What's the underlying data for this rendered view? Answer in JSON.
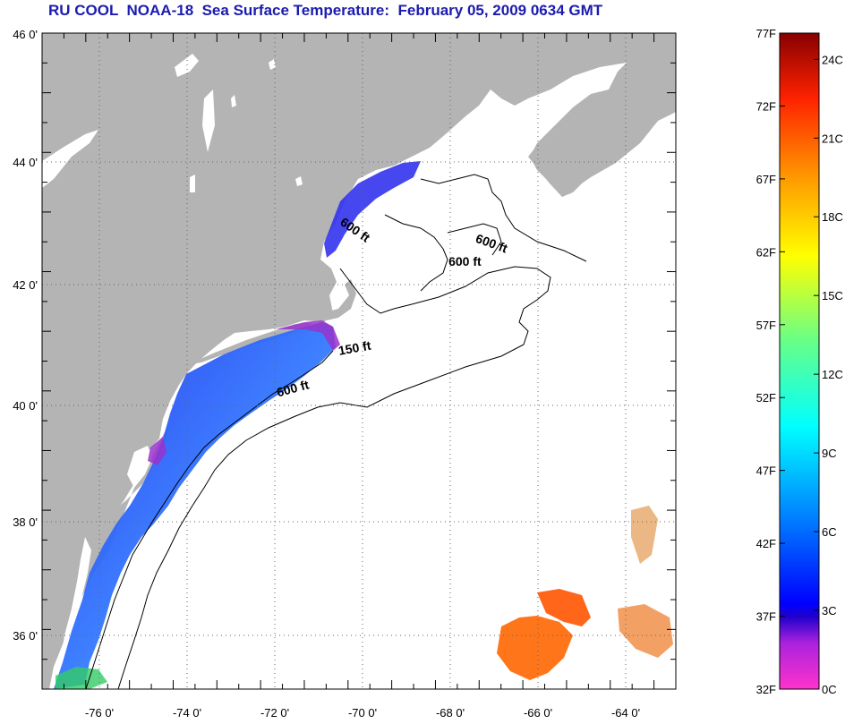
{
  "title": "RU COOL  NOAA-18  Sea Surface Temperature:  February 05, 2009 0634 GMT",
  "map": {
    "lat_range": [
      35,
      46
    ],
    "lon_range": [
      -77,
      -62.5
    ],
    "lat_ticks": [
      {
        "value": 46,
        "label": "46 0'"
      },
      {
        "value": 44,
        "label": "44 0'"
      },
      {
        "value": 42,
        "label": "42 0'"
      },
      {
        "value": 40,
        "label": "40 0'"
      },
      {
        "value": 38,
        "label": "38 0'"
      },
      {
        "value": 36,
        "label": "36 0'"
      }
    ],
    "lon_ticks": [
      {
        "value": -76,
        "label": "-76 0'"
      },
      {
        "value": -74,
        "label": "-74 0'"
      },
      {
        "value": -72,
        "label": "-72 0'"
      },
      {
        "value": -70,
        "label": "-70 0'"
      },
      {
        "value": -68,
        "label": "-68 0'"
      },
      {
        "value": -66,
        "label": "-66 0'"
      },
      {
        "value": -64,
        "label": "-64 0'"
      }
    ],
    "contour_labels": [
      {
        "text": "600 ft",
        "lon": -70.2,
        "lat": 42.8,
        "angle": 35
      },
      {
        "text": "600 ft",
        "lon": -67.1,
        "lat": 42.5,
        "angle": 20
      },
      {
        "text": "600 ft",
        "lon": -67.7,
        "lat": 42.1,
        "angle": 0
      },
      {
        "text": "150 ft",
        "lon": -70.2,
        "lat": 40.6,
        "angle": -10
      },
      {
        "text": "600 ft",
        "lon": -71.6,
        "lat": 39.9,
        "angle": -15
      }
    ],
    "colors": {
      "land": "#b4b4b4",
      "ocean": "#ffffff",
      "grid": "#555555"
    }
  },
  "colorbar": {
    "f_labels": [
      "77F",
      "72F",
      "67F",
      "62F",
      "57F",
      "52F",
      "47F",
      "42F",
      "37F",
      "32F"
    ],
    "c_labels": [
      "24C",
      "21C",
      "18C",
      "15C",
      "12C",
      "9C",
      "6C",
      "3C",
      "0C"
    ],
    "stops": [
      "#ff33cc",
      "#6622cc",
      "#0000ff",
      "#0088ff",
      "#00ffff",
      "#66ff88",
      "#ffff00",
      "#ff9900",
      "#ff2200",
      "#880000"
    ]
  }
}
